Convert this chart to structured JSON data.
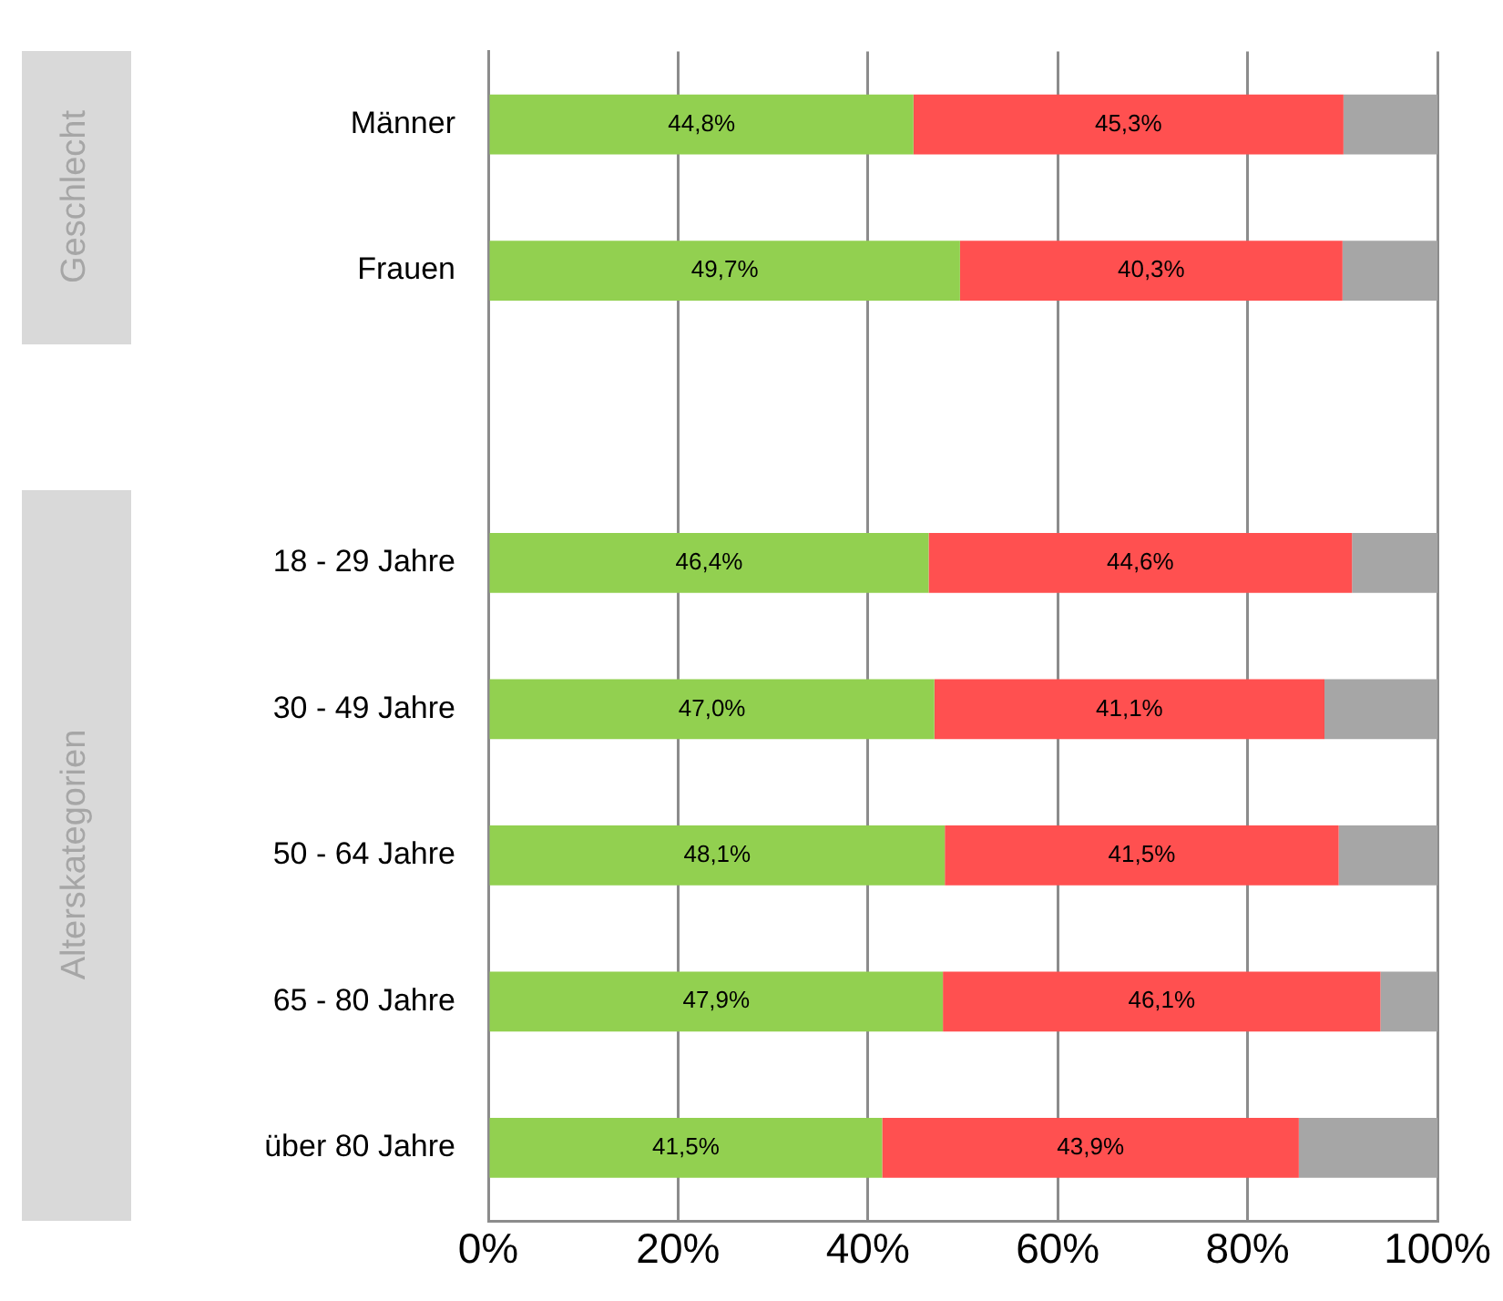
{
  "chart_data": {
    "type": "bar",
    "orientation": "horizontal",
    "stacked": true,
    "categories": [
      "Männer",
      "Frauen",
      null,
      "18 - 29 Jahre",
      "30 - 49 Jahre",
      "50 - 64 Jahre",
      "65 - 80 Jahre",
      "über 80 Jahre"
    ],
    "series": [
      {
        "color": "#92d050",
        "values": [
          44.8,
          49.7,
          null,
          46.4,
          47.0,
          48.1,
          47.9,
          41.5
        ],
        "value_labels": [
          "44,8%",
          "49,7%",
          null,
          "46,4%",
          "47,0%",
          "48,1%",
          "47,9%",
          "41,5%"
        ]
      },
      {
        "color": "#ff5050",
        "values": [
          45.3,
          40.3,
          null,
          44.6,
          41.1,
          41.5,
          46.1,
          43.9
        ],
        "value_labels": [
          "45,3%",
          "40,3%",
          null,
          "44,6%",
          "41,1%",
          "41,5%",
          "46,1%",
          "43,9%"
        ]
      },
      {
        "color": "#a6a6a6",
        "values": [
          9.9,
          10.0,
          null,
          9.0,
          11.9,
          10.4,
          6.0,
          14.6
        ]
      }
    ],
    "xlim": [
      0,
      100
    ],
    "xticks": [
      {
        "value": 0,
        "label": "0%"
      },
      {
        "value": 20,
        "label": "20%"
      },
      {
        "value": 40,
        "label": "40%"
      },
      {
        "value": 60,
        "label": "60%"
      },
      {
        "value": 80,
        "label": "80%"
      },
      {
        "value": 100,
        "label": "100%"
      }
    ],
    "grid": "x",
    "legend": false,
    "annotations": [
      "Geschlecht",
      "Alterskategorien"
    ]
  }
}
